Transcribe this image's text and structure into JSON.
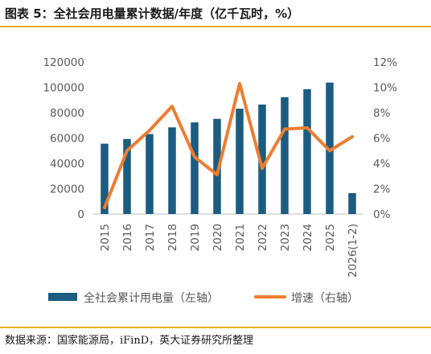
{
  "title": "图表 5：全社会用电量累计数据/年度（亿千瓦时，%）",
  "source": "数据来源：国家能源局，iFinD，英大证券研究所整理",
  "colors": {
    "bar": "#1b5c80",
    "line": "#ed7d31",
    "accent": "#e8b21a",
    "text": "#595959"
  },
  "chart_data": {
    "type": "bar",
    "categories": [
      "2015",
      "2016",
      "2017",
      "2018",
      "2019",
      "2020",
      "2021",
      "2022",
      "2023",
      "2024",
      "2025",
      "2026(1-2)"
    ],
    "series": [
      {
        "name": "全社会累计用电量（左轴）",
        "type": "bar",
        "axis": "left",
        "values": [
          55500,
          59200,
          63100,
          68400,
          72300,
          75100,
          83100,
          86400,
          92200,
          98500,
          103700,
          16500
        ]
      },
      {
        "name": "增速（右轴）",
        "type": "line",
        "axis": "right",
        "values": [
          0.5,
          5.0,
          6.6,
          8.5,
          4.5,
          3.1,
          10.3,
          3.6,
          6.7,
          6.8,
          5.0,
          6.1
        ]
      }
    ],
    "y_left": {
      "min": 0,
      "max": 120000,
      "ticks": [
        "0",
        "20000",
        "40000",
        "60000",
        "80000",
        "100000",
        "120000"
      ]
    },
    "y_right": {
      "min": 0,
      "max": 12,
      "ticks": [
        "0%",
        "2%",
        "4%",
        "6%",
        "8%",
        "10%",
        "12%"
      ]
    },
    "legend_position": "bottom",
    "grid": false
  }
}
